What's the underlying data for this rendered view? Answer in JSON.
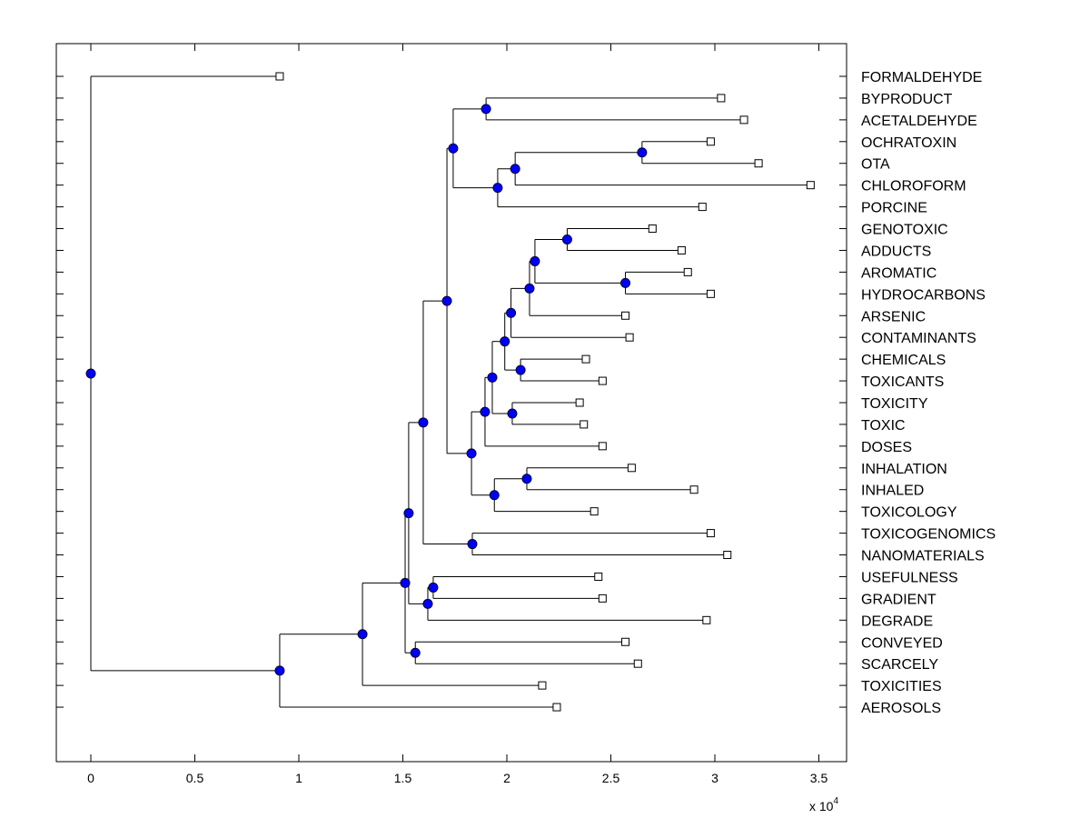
{
  "chart_data": {
    "type": "dendrogram",
    "title": "",
    "xlabel": "",
    "x_multiplier": "x 10",
    "x_multiplier_exp": "4",
    "xlim": [
      -0.166,
      3.62
    ],
    "xticks": [
      0,
      0.5,
      1,
      1.5,
      2,
      2.5,
      3,
      3.5
    ],
    "xtick_labels": [
      "0",
      "0.5",
      "1",
      "1.5",
      "2",
      "2.5",
      "3",
      "3.5"
    ],
    "leaf_color": "#ffffff",
    "node_color": "#0000ff",
    "leaves": [
      {
        "label": "FORMALDEHYDE",
        "x": 0.908
      },
      {
        "label": "BYPRODUCT",
        "x": 3.03
      },
      {
        "label": "ACETALDEHYDE",
        "x": 3.14
      },
      {
        "label": "OCHRATOXIN",
        "x": 2.98
      },
      {
        "label": "OTA",
        "x": 3.21
      },
      {
        "label": "CHLOROFORM",
        "x": 3.46
      },
      {
        "label": "PORCINE",
        "x": 2.94
      },
      {
        "label": "GENOTOXIC",
        "x": 2.7
      },
      {
        "label": "ADDUCTS",
        "x": 2.84
      },
      {
        "label": "AROMATIC",
        "x": 2.87
      },
      {
        "label": "HYDROCARBONS",
        "x": 2.98
      },
      {
        "label": "ARSENIC",
        "x": 2.57
      },
      {
        "label": "CONTAMINANTS",
        "x": 2.59
      },
      {
        "label": "CHEMICALS",
        "x": 2.38
      },
      {
        "label": "TOXICANTS",
        "x": 2.46
      },
      {
        "label": "TOXICITY",
        "x": 2.35
      },
      {
        "label": "TOXIC",
        "x": 2.37
      },
      {
        "label": "DOSES",
        "x": 2.46
      },
      {
        "label": "INHALATION",
        "x": 2.6
      },
      {
        "label": "INHALED",
        "x": 2.9
      },
      {
        "label": "TOXICOLOGY",
        "x": 2.42
      },
      {
        "label": "TOXICOGENOMICS",
        "x": 2.98
      },
      {
        "label": "NANOMATERIALS",
        "x": 3.06
      },
      {
        "label": "USEFULNESS",
        "x": 2.44
      },
      {
        "label": "GRADIENT",
        "x": 2.46
      },
      {
        "label": "DEGRADE",
        "x": 2.96
      },
      {
        "label": "CONVEYED",
        "x": 2.57
      },
      {
        "label": "SCARCELY",
        "x": 2.63
      },
      {
        "label": "TOXICITIES",
        "x": 2.17
      },
      {
        "label": "AEROSOLS",
        "x": 2.24
      }
    ],
    "tree": {
      "x": 0,
      "children": [
        0,
        {
          "x": 0.908,
          "children": [
            {
              "x": 1.306,
              "children": [
                {
                  "x": 1.511,
                  "children": [
                    {
                      "x": 1.528,
                      "children": [
                        {
                          "x": 1.598,
                          "children": [
                            {
                              "x": 1.712,
                              "children": [
                                {
                                  "x": 1.742,
                                  "children": [
                                    {
                                      "x": 1.9,
                                      "children": [
                                        1,
                                        2
                                      ]
                                    },
                                    {
                                      "x": 1.956,
                                      "children": [
                                        {
                                          "x": 2.04,
                                          "children": [
                                            {
                                              "x": 2.65,
                                              "children": [
                                                3,
                                                4
                                              ]
                                            },
                                            5
                                          ]
                                        },
                                        6
                                      ]
                                    }
                                  ]
                                },
                                {
                                  "x": 1.83,
                                  "children": [
                                    {
                                      "x": 1.895,
                                      "children": [
                                        {
                                          "x": 1.93,
                                          "children": [
                                            {
                                              "x": 1.99,
                                              "children": [
                                                {
                                                  "x": 2.02,
                                                  "children": [
                                                    {
                                                      "x": 2.109,
                                                      "children": [
                                                        {
                                                          "x": 2.135,
                                                          "children": [
                                                            {
                                                              "x": 2.29,
                                                              "children": [
                                                                7,
                                                                8
                                                              ]
                                                            },
                                                            {
                                                              "x": 2.57,
                                                              "children": [
                                                                9,
                                                                10
                                                              ]
                                                            }
                                                          ]
                                                        },
                                                        11
                                                      ]
                                                    },
                                                    12
                                                  ]
                                                },
                                                {
                                                  "x": 2.066,
                                                  "children": [
                                                    13,
                                                    14
                                                  ]
                                                }
                                              ]
                                            },
                                            {
                                              "x": 2.026,
                                              "children": [
                                                15,
                                                16
                                              ]
                                            }
                                          ]
                                        },
                                        17
                                      ]
                                    },
                                    {
                                      "x": 1.94,
                                      "children": [
                                        {
                                          "x": 2.096,
                                          "children": [
                                            18,
                                            19
                                          ]
                                        },
                                        20
                                      ]
                                    }
                                  ]
                                }
                              ]
                            },
                            {
                              "x": 1.834,
                              "children": [
                                21,
                                22
                              ]
                            }
                          ]
                        },
                        {
                          "x": 1.62,
                          "children": [
                            {
                              "x": 1.646,
                              "children": [
                                23,
                                24
                              ]
                            },
                            25
                          ]
                        }
                      ]
                    },
                    {
                      "x": 1.56,
                      "children": [
                        26,
                        27
                      ]
                    }
                  ]
                },
                28
              ]
            },
            29
          ]
        }
      ]
    }
  }
}
